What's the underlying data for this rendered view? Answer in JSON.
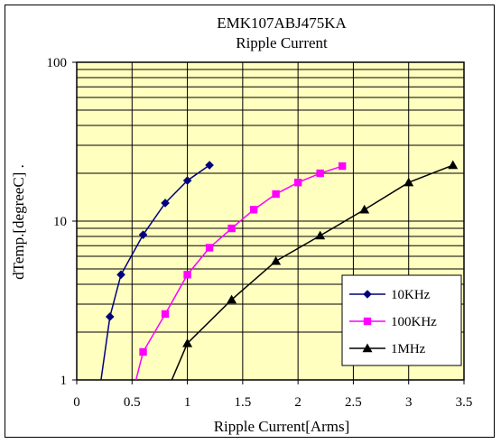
{
  "chart_data": {
    "type": "line",
    "title": "EMK107ABJ475KA",
    "subtitle": "Ripple Current",
    "xlabel": "Ripple Current[Arms]",
    "ylabel": "dTemp.[degreeC] .",
    "xlim": [
      0,
      3.5
    ],
    "ylim": [
      1,
      100
    ],
    "yscale": "log",
    "grid": true,
    "legend": "bottom-right",
    "x_ticks": [
      "0",
      "0.5",
      "1",
      "1.5",
      "2",
      "2.5",
      "3",
      "3.5"
    ],
    "y_ticks": [
      "1",
      "10",
      "100"
    ],
    "plot_background": "#ffffc0",
    "series": [
      {
        "name": "10KHz",
        "color": "#00007f",
        "marker": "diamond",
        "points": [
          [
            0.2,
            0.8
          ],
          [
            0.3,
            2.5
          ],
          [
            0.4,
            4.6
          ],
          [
            0.6,
            8.2
          ],
          [
            0.8,
            13.0
          ],
          [
            1.0,
            18.0
          ],
          [
            1.2,
            22.5
          ]
        ]
      },
      {
        "name": "100KHz",
        "color": "#ff00ff",
        "marker": "square",
        "points": [
          [
            0.5,
            0.8
          ],
          [
            0.6,
            1.5
          ],
          [
            0.8,
            2.6
          ],
          [
            1.0,
            4.6
          ],
          [
            1.2,
            6.8
          ],
          [
            1.4,
            9.0
          ],
          [
            1.6,
            11.8
          ],
          [
            1.8,
            14.8
          ],
          [
            2.0,
            17.5
          ],
          [
            2.2,
            20.0
          ],
          [
            2.4,
            22.2
          ]
        ]
      },
      {
        "name": "1MHz",
        "color": "#000000",
        "marker": "triangle",
        "points": [
          [
            0.8,
            0.8
          ],
          [
            1.0,
            1.7
          ],
          [
            1.4,
            3.2
          ],
          [
            1.8,
            5.6
          ],
          [
            2.2,
            8.1
          ],
          [
            2.6,
            11.8
          ],
          [
            3.0,
            17.5
          ],
          [
            3.4,
            22.5
          ]
        ]
      }
    ]
  }
}
